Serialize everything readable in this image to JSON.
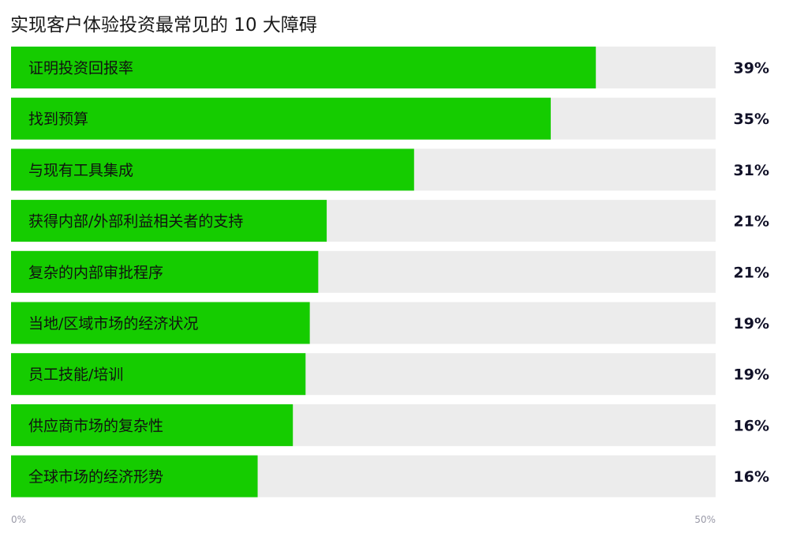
{
  "chart_data": {
    "type": "bar",
    "orientation": "horizontal",
    "title": "实现客户体验投资最常见的 10 大障碍",
    "categories": [
      "证明投资回报率",
      "找到预算",
      "与现有工具集成",
      "获得内部/外部利益相关者的支持",
      "复杂的内部审批程序",
      "当地/区域市场的经济状况",
      "员工技能/培训",
      "供应商市场的复杂性",
      "全球市场的经济形势"
    ],
    "values": [
      41.5,
      38.3,
      28.6,
      22.4,
      21.8,
      21.2,
      20.9,
      20.0,
      17.5
    ],
    "value_labels": [
      "39%",
      "35%",
      "31%",
      "21%",
      "21%",
      "19%",
      "19%",
      "16%",
      "16%"
    ],
    "xlim": [
      0,
      50
    ],
    "tick_labels": [
      "0%",
      "50%"
    ],
    "xlabel": "",
    "ylabel": "",
    "grid": false,
    "legend": "none",
    "colors": {
      "bar": "#15cc00",
      "track": "#ececec"
    }
  }
}
